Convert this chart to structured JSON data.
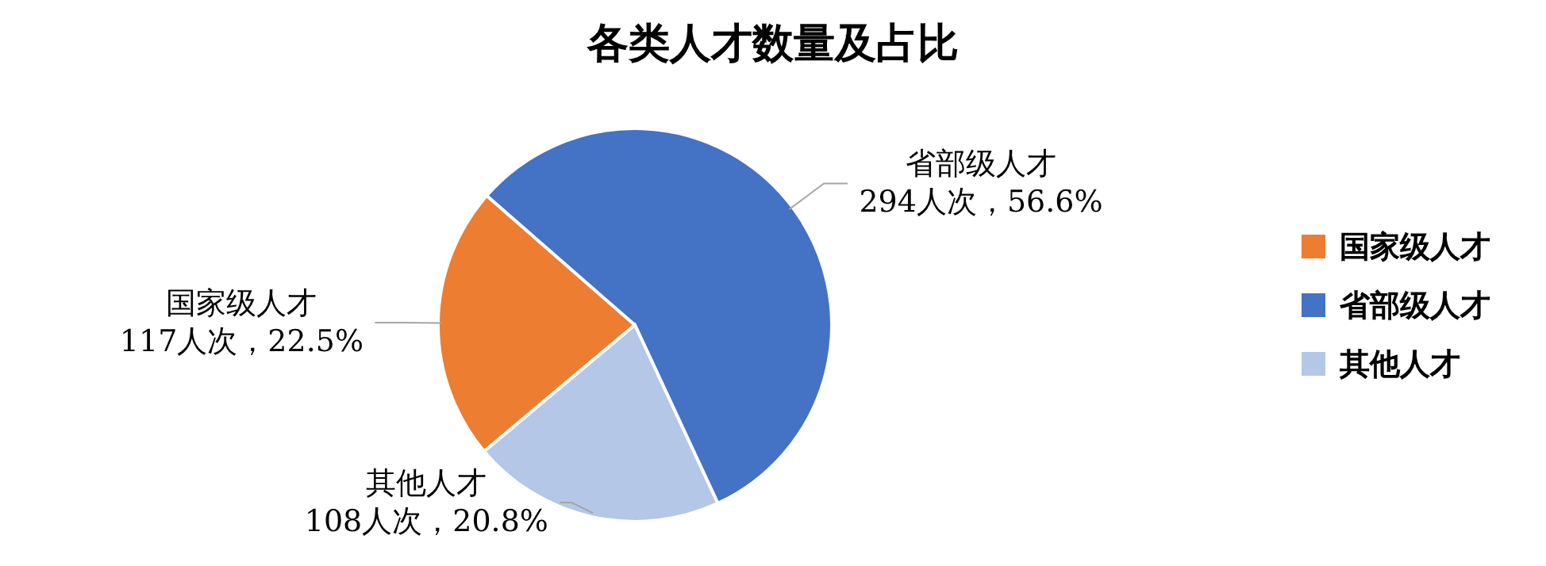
{
  "chart_data": {
    "type": "pie",
    "title": "各类人才数量及占比",
    "categories": [
      "国家级人才",
      "省部级人才",
      "其他人才"
    ],
    "values": [
      117,
      294,
      108
    ],
    "colors": [
      "#ed7d31",
      "#4472c4",
      "#b4c7e7"
    ],
    "value_labels": [
      "117人次，22.5%",
      "294人次，56.6%",
      "108人次，20.8%"
    ],
    "legend": "right"
  }
}
